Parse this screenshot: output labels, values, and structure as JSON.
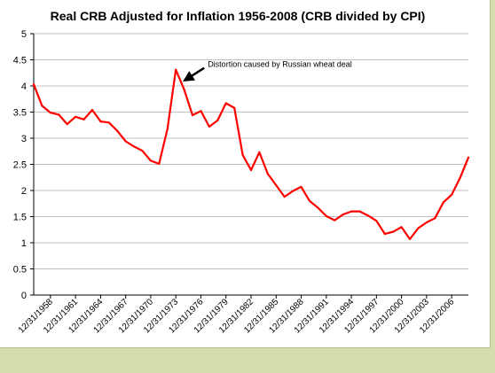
{
  "chart_data": {
    "type": "line",
    "title": "Real CRB Adjusted for Inflation 1956-2008  (CRB divided by CPI)",
    "xlabel": "",
    "ylabel": "",
    "ylim": [
      0,
      5
    ],
    "yticks": [
      "0",
      "0.5",
      "1",
      "1.5",
      "2",
      "2.5",
      "3",
      "3.5",
      "4",
      "4.5",
      "5"
    ],
    "x_tick_labels": [
      "12/31/1958",
      "12/31/1961",
      "12/31/1964",
      "12/31/1967",
      "12/31/1970",
      "12/31/1973",
      "12/31/1976",
      "12/31/1979",
      "12/31/1982",
      "12/31/1985",
      "12/31/1988",
      "12/31/1991",
      "12/31/1994",
      "12/31/1997",
      "12/31/2000",
      "12/31/2003",
      "12/31/2006"
    ],
    "grid": true,
    "line_color": "#ff0000",
    "series": [
      {
        "x": [
          1956,
          1957,
          1958,
          1959,
          1960,
          1961,
          1962,
          1963,
          1964,
          1965,
          1966,
          1967,
          1968,
          1969,
          1970,
          1971,
          1972,
          1973,
          1974,
          1975,
          1976,
          1977,
          1978,
          1979,
          1980,
          1981,
          1982,
          1983,
          1984,
          1985,
          1986,
          1987,
          1988,
          1989,
          1990,
          1991,
          1992,
          1993,
          1994,
          1995,
          1996,
          1997,
          1998,
          1999,
          2000,
          2001,
          2002,
          2003,
          2004,
          2005,
          2006,
          2007,
          2008
        ],
        "values": [
          4.03,
          3.62,
          3.49,
          3.45,
          3.27,
          3.41,
          3.36,
          3.54,
          3.32,
          3.3,
          3.14,
          2.94,
          2.84,
          2.76,
          2.57,
          2.51,
          3.18,
          4.31,
          3.93,
          3.44,
          3.52,
          3.22,
          3.34,
          3.67,
          3.58,
          2.68,
          2.39,
          2.73,
          2.32,
          2.1,
          1.88,
          1.99,
          2.07,
          1.8,
          1.67,
          1.51,
          1.43,
          1.54,
          1.6,
          1.6,
          1.52,
          1.42,
          1.17,
          1.21,
          1.3,
          1.07,
          1.28,
          1.39,
          1.47,
          1.77,
          1.92,
          2.24,
          2.63
        ]
      }
    ],
    "annotations": [
      {
        "text": "Distortion caused by Russian wheat deal",
        "x": 1973,
        "y": 4.31
      }
    ]
  }
}
